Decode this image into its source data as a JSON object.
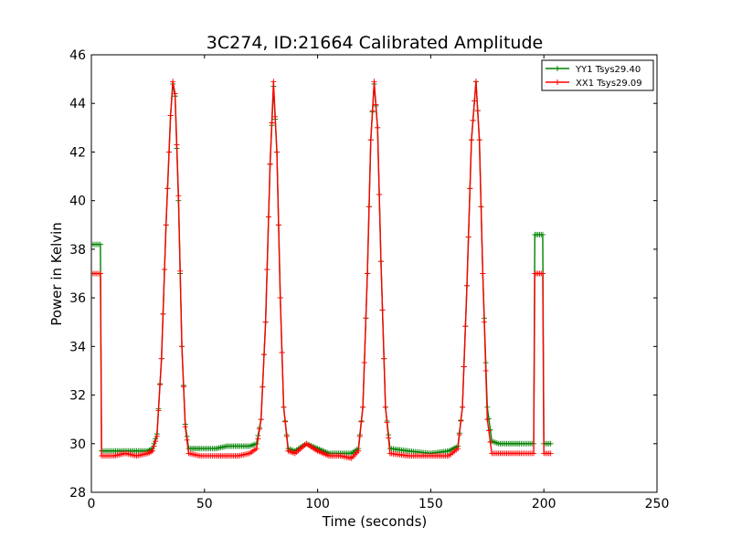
{
  "chart_data": {
    "type": "line",
    "title": "3C274, ID:21664 Calibrated Amplitude",
    "xlabel": "Time (seconds)",
    "ylabel": "Power in Kelvin",
    "xlim": [
      0,
      250
    ],
    "ylim": [
      28,
      46
    ],
    "xticks": [
      "0",
      "50",
      "100",
      "150",
      "200",
      "250"
    ],
    "yticks": [
      "28",
      "30",
      "32",
      "34",
      "36",
      "38",
      "40",
      "42",
      "44",
      "46"
    ],
    "grid": false,
    "legend_position": "top-right",
    "series": [
      {
        "name": "YY1 Tsys29.40",
        "color": "#008000",
        "marker": "+",
        "points": [
          [
            0,
            38.2
          ],
          [
            4,
            38.2
          ],
          [
            4.5,
            29.7
          ],
          [
            10,
            29.7
          ],
          [
            15,
            29.7
          ],
          [
            20,
            29.7
          ],
          [
            25,
            29.7
          ],
          [
            27,
            29.8
          ],
          [
            29,
            30.4
          ],
          [
            31,
            33.5
          ],
          [
            33,
            39.0
          ],
          [
            35,
            43.5
          ],
          [
            36,
            44.8
          ],
          [
            37,
            44.3
          ],
          [
            38.5,
            40.0
          ],
          [
            40,
            34.0
          ],
          [
            41.5,
            30.8
          ],
          [
            43,
            29.8
          ],
          [
            48,
            29.8
          ],
          [
            55,
            29.8
          ],
          [
            60,
            29.9
          ],
          [
            65,
            29.9
          ],
          [
            70,
            29.9
          ],
          [
            73,
            30.0
          ],
          [
            75,
            31.0
          ],
          [
            77,
            35.0
          ],
          [
            79,
            41.5
          ],
          [
            80.5,
            44.7
          ],
          [
            82,
            42.0
          ],
          [
            83.5,
            36.0
          ],
          [
            85,
            31.5
          ],
          [
            87,
            29.8
          ],
          [
            90,
            29.7
          ],
          [
            95,
            30.0
          ],
          [
            100,
            29.8
          ],
          [
            105,
            29.6
          ],
          [
            110,
            29.6
          ],
          [
            115,
            29.6
          ],
          [
            118,
            29.8
          ],
          [
            120,
            31.5
          ],
          [
            122,
            37.0
          ],
          [
            123.5,
            42.5
          ],
          [
            125,
            44.8
          ],
          [
            126.5,
            43.0
          ],
          [
            128,
            37.5
          ],
          [
            130,
            31.5
          ],
          [
            132,
            29.8
          ],
          [
            140,
            29.7
          ],
          [
            150,
            29.6
          ],
          [
            158,
            29.7
          ],
          [
            162,
            29.9
          ],
          [
            164,
            31.5
          ],
          [
            166,
            36.5
          ],
          [
            168,
            42.5
          ],
          [
            170,
            44.9
          ],
          [
            171.5,
            42.5
          ],
          [
            173,
            37.0
          ],
          [
            175,
            31.5
          ],
          [
            177,
            30.1
          ],
          [
            180,
            30.0
          ],
          [
            185,
            30.0
          ],
          [
            190,
            30.0
          ],
          [
            195.5,
            30.0
          ],
          [
            196,
            38.6
          ],
          [
            199.5,
            38.6
          ],
          [
            200,
            30.0
          ],
          [
            203,
            30.0
          ]
        ]
      },
      {
        "name": "XX1 Tsys29.09",
        "color": "#ff0000",
        "marker": "+",
        "points": [
          [
            0,
            37.0
          ],
          [
            4,
            37.0
          ],
          [
            4.5,
            29.5
          ],
          [
            10,
            29.5
          ],
          [
            15,
            29.6
          ],
          [
            20,
            29.5
          ],
          [
            25,
            29.6
          ],
          [
            27,
            29.7
          ],
          [
            29,
            30.3
          ],
          [
            31,
            33.5
          ],
          [
            33,
            39.0
          ],
          [
            35,
            43.5
          ],
          [
            36,
            44.9
          ],
          [
            37,
            44.4
          ],
          [
            38.5,
            40.2
          ],
          [
            40,
            34.0
          ],
          [
            41.5,
            30.7
          ],
          [
            43,
            29.6
          ],
          [
            48,
            29.5
          ],
          [
            55,
            29.5
          ],
          [
            60,
            29.5
          ],
          [
            65,
            29.5
          ],
          [
            70,
            29.6
          ],
          [
            73,
            29.8
          ],
          [
            75,
            31.0
          ],
          [
            77,
            35.0
          ],
          [
            79,
            41.5
          ],
          [
            80.5,
            44.9
          ],
          [
            82,
            42.0
          ],
          [
            83.5,
            36.0
          ],
          [
            85,
            31.5
          ],
          [
            87,
            29.7
          ],
          [
            90,
            29.6
          ],
          [
            95,
            30.0
          ],
          [
            100,
            29.7
          ],
          [
            105,
            29.5
          ],
          [
            110,
            29.5
          ],
          [
            115,
            29.4
          ],
          [
            118,
            29.7
          ],
          [
            120,
            31.5
          ],
          [
            122,
            37.0
          ],
          [
            123.5,
            42.5
          ],
          [
            125,
            44.9
          ],
          [
            126.5,
            43.0
          ],
          [
            128,
            37.5
          ],
          [
            130,
            31.5
          ],
          [
            132,
            29.6
          ],
          [
            140,
            29.5
          ],
          [
            150,
            29.5
          ],
          [
            158,
            29.5
          ],
          [
            162,
            29.8
          ],
          [
            164,
            31.5
          ],
          [
            166,
            36.5
          ],
          [
            168,
            42.5
          ],
          [
            170,
            44.9
          ],
          [
            171.5,
            42.5
          ],
          [
            173,
            37.0
          ],
          [
            175,
            31.0
          ],
          [
            177,
            29.6
          ],
          [
            180,
            29.6
          ],
          [
            185,
            29.6
          ],
          [
            190,
            29.6
          ],
          [
            195.5,
            29.6
          ],
          [
            196,
            37.0
          ],
          [
            199.5,
            37.0
          ],
          [
            200,
            29.6
          ],
          [
            203,
            29.6
          ]
        ]
      }
    ]
  }
}
